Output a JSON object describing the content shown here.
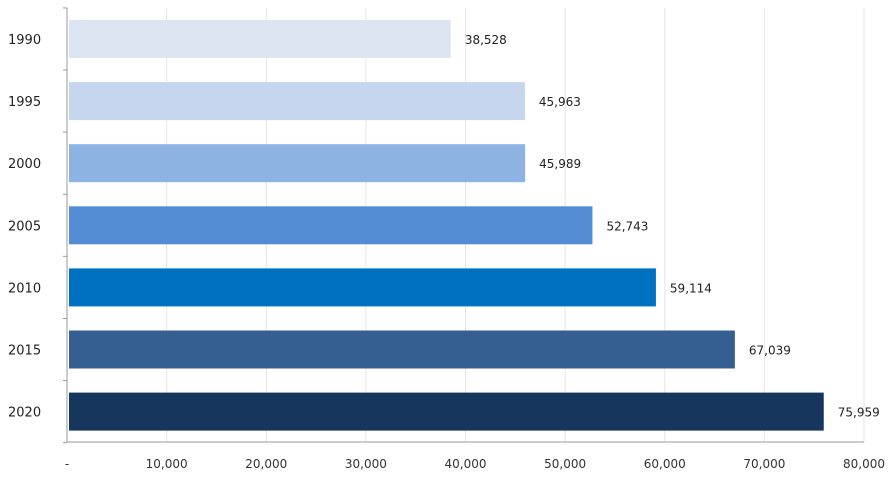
{
  "chart_data": {
    "type": "bar",
    "orientation": "horizontal",
    "title": "",
    "xlabel": "",
    "ylabel": "",
    "categories": [
      "1990",
      "1995",
      "2000",
      "2005",
      "2010",
      "2015",
      "2020"
    ],
    "values": [
      38528,
      45963,
      45989,
      52743,
      59114,
      67039,
      75959
    ],
    "value_labels": [
      "38,528",
      "45,963",
      "45,989",
      "52,743",
      "59,114",
      "67,039",
      "75,959"
    ],
    "bar_colors": [
      "#dce6f2",
      "#c5d6ee",
      "#8db3e2",
      "#548dd4",
      "#0070c0",
      "#365f91",
      "#17365d"
    ],
    "xlim": [
      0,
      80000
    ],
    "x_ticks": [
      0,
      10000,
      20000,
      30000,
      40000,
      50000,
      60000,
      70000,
      80000
    ],
    "x_tick_labels": [
      "-",
      "10,000",
      "20,000",
      "30,000",
      "40,000",
      "50,000",
      "60,000",
      "70,000",
      "80,000"
    ],
    "grid": true,
    "legend": "none"
  }
}
